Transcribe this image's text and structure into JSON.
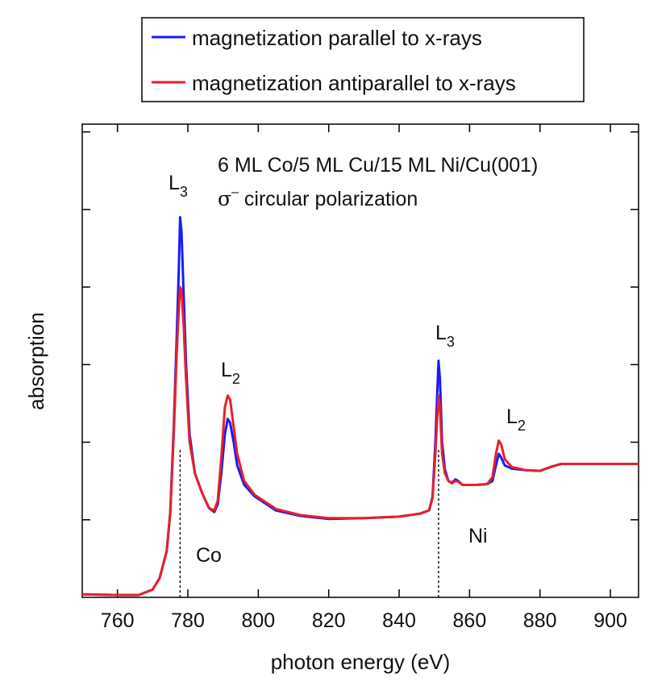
{
  "legend": {
    "items": [
      {
        "label": "magnetization parallel to x-rays",
        "color": "#1a1aff"
      },
      {
        "label": "magnetization antiparallel to x-rays",
        "color": "#e8202a"
      }
    ]
  },
  "annotations": {
    "sample": "6 ML Co/5 ML Cu/15 ML Ni/Cu(001)",
    "sigma": "σ",
    "sigma_sup": "–",
    "polarization": " circular polarization",
    "co_label": "Co",
    "ni_label": "Ni",
    "co_l3": {
      "main": "L",
      "sub": "3"
    },
    "co_l2": {
      "main": "L",
      "sub": "2"
    },
    "ni_l3": {
      "main": "L",
      "sub": "3"
    },
    "ni_l2": {
      "main": "L",
      "sub": "2"
    }
  },
  "chart_data": {
    "type": "line",
    "xlabel": "photon energy  (eV)",
    "ylabel": "absorption",
    "xlim": [
      750,
      908
    ],
    "ylim": [
      0,
      6.1
    ],
    "xticks": [
      760,
      780,
      800,
      820,
      840,
      860,
      880,
      900
    ],
    "y_tick_values": [
      1,
      2,
      3,
      4,
      5,
      6
    ],
    "y_tick_labels_shown": false,
    "grid": false,
    "legend_position": "top-center, outside plot",
    "edge_markers": [
      777.8,
      851.2
    ],
    "series": [
      {
        "name": "magnetization parallel to x-rays",
        "color": "#1a1aff",
        "points": [
          [
            750,
            0.04
          ],
          [
            760,
            0.03
          ],
          [
            766,
            0.03
          ],
          [
            770,
            0.1
          ],
          [
            772,
            0.25
          ],
          [
            774,
            0.6
          ],
          [
            775,
            1.1
          ],
          [
            776,
            2.2
          ],
          [
            776.8,
            3.3
          ],
          [
            777.4,
            4.2
          ],
          [
            777.8,
            4.9
          ],
          [
            778.2,
            4.7
          ],
          [
            778.8,
            3.9
          ],
          [
            779.5,
            3.0
          ],
          [
            780.5,
            2.1
          ],
          [
            782,
            1.6
          ],
          [
            784,
            1.35
          ],
          [
            786,
            1.15
          ],
          [
            787.5,
            1.1
          ],
          [
            788.5,
            1.2
          ],
          [
            789.5,
            1.6
          ],
          [
            790.5,
            2.1
          ],
          [
            791.3,
            2.3
          ],
          [
            792,
            2.25
          ],
          [
            793,
            2.0
          ],
          [
            794,
            1.7
          ],
          [
            796,
            1.45
          ],
          [
            799,
            1.3
          ],
          [
            805,
            1.12
          ],
          [
            812,
            1.05
          ],
          [
            820,
            1.01
          ],
          [
            830,
            1.02
          ],
          [
            840,
            1.04
          ],
          [
            846,
            1.08
          ],
          [
            848.5,
            1.12
          ],
          [
            849.5,
            1.3
          ],
          [
            850.3,
            2.0
          ],
          [
            850.8,
            2.6
          ],
          [
            851.2,
            3.05
          ],
          [
            851.6,
            2.8
          ],
          [
            852.2,
            2.0
          ],
          [
            853,
            1.65
          ],
          [
            854,
            1.5
          ],
          [
            855,
            1.48
          ],
          [
            856,
            1.52
          ],
          [
            856.8,
            1.5
          ],
          [
            858,
            1.45
          ],
          [
            862,
            1.45
          ],
          [
            865,
            1.46
          ],
          [
            866.5,
            1.5
          ],
          [
            867.5,
            1.7
          ],
          [
            868.3,
            1.85
          ],
          [
            869,
            1.8
          ],
          [
            870,
            1.7
          ],
          [
            872,
            1.66
          ],
          [
            876,
            1.64
          ],
          [
            880,
            1.63
          ],
          [
            883,
            1.68
          ],
          [
            886,
            1.72
          ],
          [
            895,
            1.72
          ],
          [
            908,
            1.72
          ]
        ]
      },
      {
        "name": "magnetization antiparallel to x-rays",
        "color": "#e8202a",
        "points": [
          [
            750,
            0.04
          ],
          [
            760,
            0.03
          ],
          [
            766,
            0.03
          ],
          [
            770,
            0.1
          ],
          [
            772,
            0.25
          ],
          [
            774,
            0.6
          ],
          [
            775,
            1.1
          ],
          [
            776,
            2.1
          ],
          [
            776.8,
            3.1
          ],
          [
            777.4,
            3.7
          ],
          [
            777.8,
            4.0
          ],
          [
            778.2,
            3.95
          ],
          [
            778.8,
            3.5
          ],
          [
            779.5,
            2.8
          ],
          [
            780.5,
            2.0
          ],
          [
            782,
            1.6
          ],
          [
            784,
            1.35
          ],
          [
            786,
            1.15
          ],
          [
            787.5,
            1.12
          ],
          [
            788.5,
            1.25
          ],
          [
            789.5,
            1.8
          ],
          [
            790.5,
            2.45
          ],
          [
            791.3,
            2.6
          ],
          [
            792,
            2.55
          ],
          [
            793,
            2.2
          ],
          [
            794,
            1.85
          ],
          [
            796,
            1.5
          ],
          [
            799,
            1.32
          ],
          [
            805,
            1.14
          ],
          [
            812,
            1.06
          ],
          [
            820,
            1.02
          ],
          [
            830,
            1.02
          ],
          [
            840,
            1.04
          ],
          [
            846,
            1.08
          ],
          [
            848.5,
            1.12
          ],
          [
            849.5,
            1.28
          ],
          [
            850.3,
            1.85
          ],
          [
            850.8,
            2.3
          ],
          [
            851.2,
            2.6
          ],
          [
            851.6,
            2.45
          ],
          [
            852.2,
            1.85
          ],
          [
            853,
            1.6
          ],
          [
            854,
            1.5
          ],
          [
            855,
            1.47
          ],
          [
            856,
            1.5
          ],
          [
            856.8,
            1.49
          ],
          [
            858,
            1.45
          ],
          [
            862,
            1.45
          ],
          [
            865,
            1.46
          ],
          [
            866.5,
            1.55
          ],
          [
            867.5,
            1.85
          ],
          [
            868.3,
            2.02
          ],
          [
            869,
            1.97
          ],
          [
            870,
            1.78
          ],
          [
            872,
            1.68
          ],
          [
            876,
            1.64
          ],
          [
            880,
            1.63
          ],
          [
            883,
            1.68
          ],
          [
            886,
            1.72
          ],
          [
            895,
            1.72
          ],
          [
            908,
            1.72
          ]
        ]
      }
    ]
  }
}
